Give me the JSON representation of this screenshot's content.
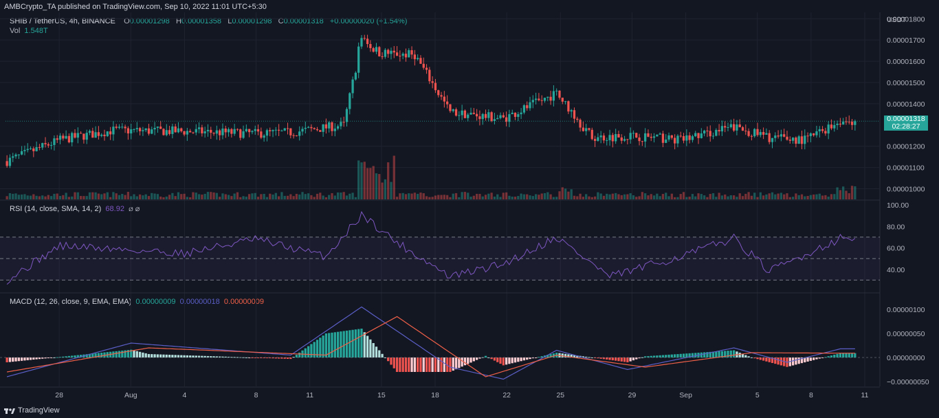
{
  "header": {
    "publisher": "AMBCrypto_TA published on TradingView.com, Sep 10, 2022 11:01 UTC+5:30"
  },
  "legend": {
    "symbol": "SHIB / TetherUS, 4h, BINANCE",
    "o_label": "O",
    "o": "0.00001298",
    "h_label": "H",
    "h": "0.00001358",
    "l_label": "L",
    "l": "0.00001298",
    "c_label": "C",
    "c": "0.00001318",
    "change": "+0.00000020 (+1.54%)",
    "vol_label": "Vol",
    "vol": "1.548T"
  },
  "price_axis": {
    "currency": "USDT",
    "ticks": [
      "0.00001800",
      "0.00001700",
      "0.00001600",
      "0.00001500",
      "0.00001400",
      "0.00001200",
      "0.00001100",
      "0.00001000"
    ],
    "last_price": "0.00001318",
    "countdown": "02:28:27"
  },
  "rsi": {
    "label": "RSI (14, close, SMA, 14, 2)",
    "value": "68.92",
    "extra": "⌀ ⌀",
    "ticks": [
      "100.00",
      "80.00",
      "60.00",
      "40.00"
    ]
  },
  "macd": {
    "label": "MACD (12, 26, close, 9, EMA, EMA)",
    "hist_value": "0.00000009",
    "macd_value": "0.00000018",
    "signal_value": "0.00000009",
    "ticks": [
      "0.00000100",
      "0.00000050",
      "0.00000000",
      "−0.00000050"
    ]
  },
  "time_axis": {
    "labels": [
      "28",
      "Aug",
      "4",
      "8",
      "11",
      "15",
      "18",
      "22",
      "25",
      "29",
      "Sep",
      "5",
      "8",
      "11"
    ]
  },
  "footer": {
    "brand": "TradingView"
  },
  "colors": {
    "up": "#26a69a",
    "down": "#ef5350",
    "rsi_line": "#7e57c2",
    "macd_line": "#5b5fc7",
    "signal_line": "#f06048",
    "background": "#131722"
  },
  "chart_data": [
    {
      "type": "candlestick",
      "title": "SHIB / TetherUS, 4h, BINANCE",
      "ylabel": "USDT",
      "ylim": [
        9.5e-06,
        1.83e-05
      ],
      "x_range": [
        "Jul 25",
        "Sep 11"
      ],
      "anchors": [
        {
          "x": "Jul 25",
          "close": 1.13e-05
        },
        {
          "x": "Jul 28",
          "close": 1.23e-05
        },
        {
          "x": "Jul 31",
          "close": 1.275e-05
        },
        {
          "x": "Aug 4",
          "close": 1.27e-05
        },
        {
          "x": "Aug 8",
          "close": 1.26e-05
        },
        {
          "x": "Aug 10",
          "close": 1.265e-05
        },
        {
          "x": "Aug 13",
          "close": 1.3e-05
        },
        {
          "x": "Aug 14",
          "close": 1.7e-05
        },
        {
          "x": "Aug 15",
          "close": 1.64e-05
        },
        {
          "x": "Aug 17",
          "close": 1.63e-05
        },
        {
          "x": "Aug 19",
          "close": 1.36e-05
        },
        {
          "x": "Aug 22",
          "close": 1.33e-05
        },
        {
          "x": "Aug 25",
          "close": 1.45e-05
        },
        {
          "x": "Aug 27",
          "close": 1.24e-05
        },
        {
          "x": "Aug 29",
          "close": 1.25e-05
        },
        {
          "x": "Sep 1",
          "close": 1.23e-05
        },
        {
          "x": "Sep 4",
          "close": 1.29e-05
        },
        {
          "x": "Sep 6",
          "close": 1.24e-05
        },
        {
          "x": "Sep 8",
          "close": 1.23e-05
        },
        {
          "x": "Sep 10",
          "close": 1.318e-05
        }
      ]
    },
    {
      "type": "bar",
      "title": "Vol",
      "note": "volume histogram under price",
      "last": "1.548T"
    },
    {
      "type": "line",
      "title": "RSI (14, close, SMA, 14, 2)",
      "ylim": [
        20,
        100
      ],
      "bands": [
        30,
        50,
        70
      ],
      "anchors": [
        {
          "x": "Jul 25",
          "y": 30
        },
        {
          "x": "Jul 28",
          "y": 62
        },
        {
          "x": "Aug 4",
          "y": 55
        },
        {
          "x": "Aug 8",
          "y": 68
        },
        {
          "x": "Aug 12",
          "y": 52
        },
        {
          "x": "Aug 14",
          "y": 91
        },
        {
          "x": "Aug 16",
          "y": 65
        },
        {
          "x": "Aug 19",
          "y": 33
        },
        {
          "x": "Aug 22",
          "y": 45
        },
        {
          "x": "Aug 25",
          "y": 70
        },
        {
          "x": "Aug 28",
          "y": 33
        },
        {
          "x": "Sep 1",
          "y": 52
        },
        {
          "x": "Sep 4",
          "y": 69
        },
        {
          "x": "Sep 6",
          "y": 38
        },
        {
          "x": "Sep 10",
          "y": 68.92
        }
      ]
    },
    {
      "type": "line",
      "title": "MACD (12, 26, close, 9, EMA, EMA)",
      "ylim": [
        -6e-07,
        1.2e-06
      ],
      "series": [
        {
          "name": "MACD",
          "anchors": [
            {
              "x": "Jul 25",
              "y": -4e-07
            },
            {
              "x": "Aug 1",
              "y": 3e-07
            },
            {
              "x": "Aug 10",
              "y": 5e-08
            },
            {
              "x": "Aug 14",
              "y": 1.05e-06
            },
            {
              "x": "Aug 19",
              "y": -2e-07
            },
            {
              "x": "Aug 22",
              "y": -4.5e-07
            },
            {
              "x": "Aug 25",
              "y": 1.5e-07
            },
            {
              "x": "Aug 29",
              "y": -2.5e-07
            },
            {
              "x": "Sep 4",
              "y": 2e-07
            },
            {
              "x": "Sep 7",
              "y": -1e-07
            },
            {
              "x": "Sep 10",
              "y": 1.8e-07
            }
          ]
        },
        {
          "name": "Signal",
          "anchors": [
            {
              "x": "Jul 25",
              "y": -3e-07
            },
            {
              "x": "Aug 2",
              "y": 2e-07
            },
            {
              "x": "Aug 12",
              "y": 5e-08
            },
            {
              "x": "Aug 16",
              "y": 8.5e-07
            },
            {
              "x": "Aug 21",
              "y": -4e-07
            },
            {
              "x": "Aug 25",
              "y": 5e-08
            },
            {
              "x": "Aug 30",
              "y": -2e-07
            },
            {
              "x": "Sep 5",
              "y": 1e-07
            },
            {
              "x": "Sep 10",
              "y": 9e-08
            }
          ]
        }
      ]
    }
  ]
}
